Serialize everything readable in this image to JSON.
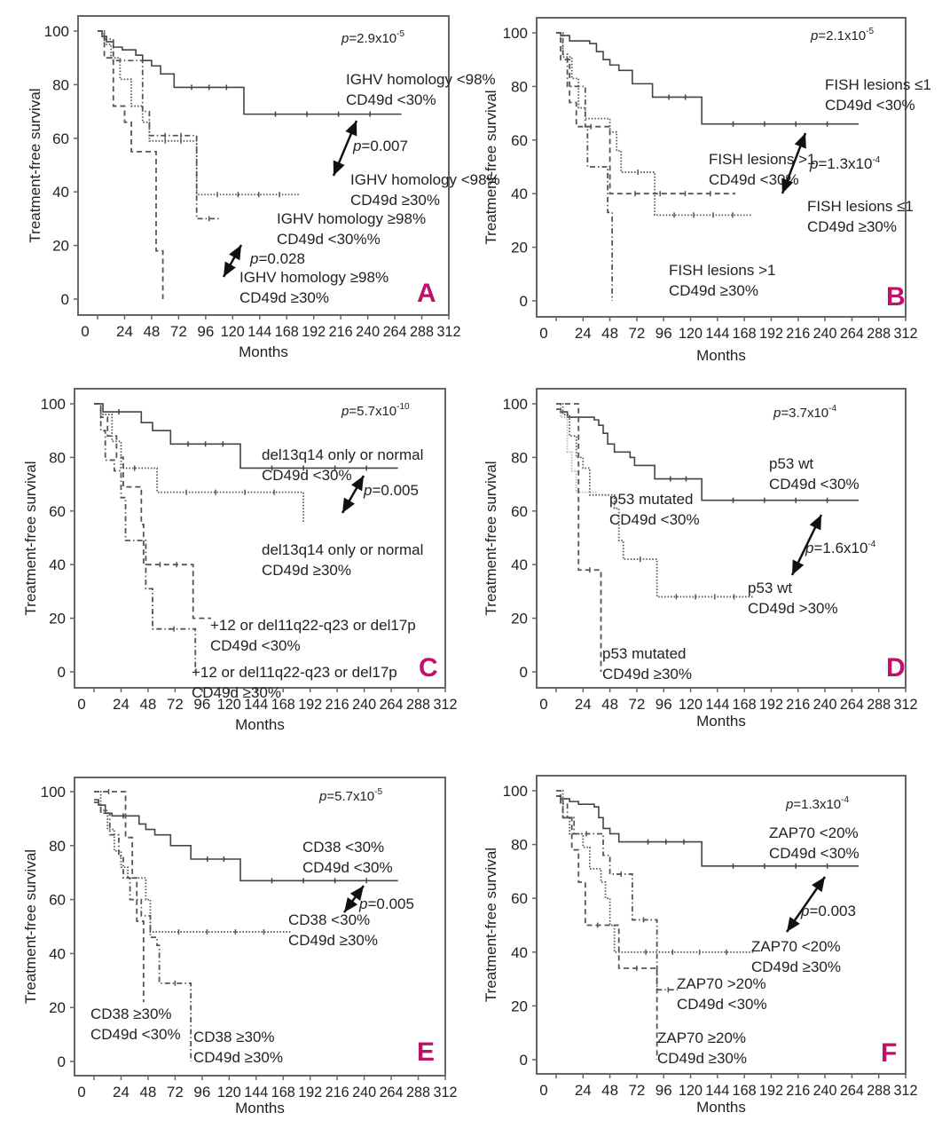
{
  "figure": {
    "accent_color": "#c0106a",
    "line_color": "#555555"
  },
  "chart_data": [
    {
      "id": "A",
      "type": "line",
      "subtype": "kaplan-meier",
      "panel_letter": "A",
      "xlabel": "Months",
      "ylabel": "Treatment-free survival",
      "xlim": [
        0,
        312
      ],
      "ylim": [
        0,
        100
      ],
      "xticks": [
        0,
        24,
        48,
        72,
        96,
        120,
        144,
        168,
        192,
        216,
        240,
        264,
        288,
        312
      ],
      "yticks": [
        0,
        20,
        40,
        60,
        80,
        100
      ],
      "overall_p": {
        "prefix": "p",
        "text": "=2.9x10",
        "exp": "-5"
      },
      "series": [
        {
          "name": "IGHV homology <98% CD49d <30%",
          "style": "solid",
          "x": [
            0,
            4,
            8,
            14,
            22,
            34,
            40,
            48,
            56,
            68,
            130,
            270
          ],
          "y": [
            100,
            98,
            96,
            94,
            93,
            91,
            89,
            87,
            84,
            79,
            69,
            69
          ]
        },
        {
          "name": "IGHV homology <98% CD49d ≥30%",
          "style": "dotted",
          "x": [
            0,
            6,
            12,
            20,
            30,
            40,
            46,
            88,
            180
          ],
          "y": [
            100,
            95,
            90,
            82,
            72,
            66,
            59,
            39,
            39
          ]
        },
        {
          "name": "IGHV homology ≥98% CD49d <30%",
          "style": "dashdot",
          "x": [
            0,
            6,
            14,
            32,
            40,
            46,
            88,
            110
          ],
          "y": [
            100,
            97,
            89,
            89,
            70,
            61,
            30,
            30
          ]
        },
        {
          "name": "IGHV homology ≥98% CD49d ≥30%",
          "style": "dashed",
          "x": [
            0,
            6,
            14,
            24,
            30,
            48,
            52,
            58,
            58
          ],
          "y": [
            100,
            90,
            72,
            66,
            55,
            55,
            18,
            18,
            0
          ]
        }
      ],
      "annotations": [
        {
          "lines": [
            "IGHV homology <98%",
            "CD49d <30%"
          ]
        },
        {
          "lines": [
            "IGHV homology <98%",
            "CD49d ≥30%"
          ]
        },
        {
          "lines": [
            "IGHV homology ≥98%",
            "CD49d <30%%"
          ]
        },
        {
          "lines": [
            "IGHV homology ≥98%",
            "CD49d ≥30%"
          ]
        }
      ],
      "pairwise_p": [
        {
          "prefix": "p",
          "text": "=0.007",
          "exp": ""
        },
        {
          "prefix": "p",
          "text": "=0.028",
          "exp": ""
        }
      ]
    },
    {
      "id": "B",
      "type": "line",
      "subtype": "kaplan-meier",
      "panel_letter": "B",
      "xlabel": "Months",
      "ylabel": "Treatment-free survival",
      "xlim": [
        0,
        312
      ],
      "ylim": [
        0,
        100
      ],
      "xticks": [
        0,
        24,
        48,
        72,
        96,
        120,
        144,
        168,
        192,
        216,
        240,
        264,
        288,
        312
      ],
      "yticks": [
        0,
        20,
        40,
        60,
        80,
        100
      ],
      "overall_p": {
        "prefix": "p",
        "text": "=2.1x10",
        "exp": "-5"
      },
      "series": [
        {
          "name": "FISH lesions ≤1 CD49d <30%",
          "style": "solid",
          "x": [
            0,
            4,
            12,
            30,
            36,
            42,
            48,
            56,
            68,
            86,
            130,
            270
          ],
          "y": [
            100,
            99,
            97,
            96,
            93,
            90,
            88,
            86,
            81,
            76,
            66,
            66
          ]
        },
        {
          "name": "FISH lesions >1 CD49d <30%",
          "style": "dotted",
          "x": [
            0,
            6,
            14,
            20,
            26,
            32,
            48,
            54,
            58,
            88,
            175
          ],
          "y": [
            100,
            91,
            83,
            72,
            68,
            68,
            63,
            56,
            48,
            32,
            32
          ]
        },
        {
          "name": "FISH lesions ≤1 CD49d ≥30%",
          "style": "dashed",
          "x": [
            0,
            4,
            12,
            18,
            44,
            48,
            160
          ],
          "y": [
            100,
            90,
            74,
            65,
            65,
            40,
            40
          ]
        },
        {
          "name": "FISH lesions >1 CD49d ≥30%",
          "style": "dashdot",
          "x": [
            0,
            6,
            10,
            18,
            26,
            28,
            42,
            46,
            50,
            50
          ],
          "y": [
            100,
            92,
            80,
            80,
            65,
            50,
            50,
            33,
            33,
            0
          ]
        }
      ],
      "annotations": [
        {
          "lines": [
            "FISH lesions ≤1",
            "CD49d <30%"
          ]
        },
        {
          "lines": [
            "FISH lesions >1",
            "CD49d <30%"
          ]
        },
        {
          "lines": [
            "FISH lesions ≤1",
            "CD49d ≥30%"
          ]
        },
        {
          "lines": [
            "FISH lesions >1",
            "CD49d ≥30%"
          ]
        }
      ],
      "pairwise_p": [
        {
          "prefix": "p",
          "text": "=1.3x10",
          "exp": "-4"
        }
      ]
    },
    {
      "id": "C",
      "type": "line",
      "subtype": "kaplan-meier",
      "panel_letter": "C",
      "xlabel": "Months",
      "ylabel": "Treatment-free survival",
      "xlim": [
        0,
        312
      ],
      "ylim": [
        0,
        100
      ],
      "xticks": [
        0,
        24,
        48,
        72,
        96,
        120,
        144,
        168,
        192,
        216,
        240,
        264,
        288,
        312
      ],
      "yticks": [
        0,
        20,
        40,
        60,
        80,
        100
      ],
      "overall_p": {
        "prefix": "p",
        "text": "=5.7x10",
        "exp": "-10"
      },
      "series": [
        {
          "name": "del13q14 only or normal CD49d <30%",
          "style": "solid",
          "x": [
            0,
            8,
            36,
            42,
            52,
            68,
            130,
            270
          ],
          "y": [
            100,
            97,
            97,
            93,
            90,
            85,
            76,
            76
          ]
        },
        {
          "name": "del13q14 only or normal CD49d ≥30%",
          "style": "dotted",
          "x": [
            0,
            8,
            16,
            24,
            48,
            56,
            186
          ],
          "y": [
            100,
            96,
            86,
            76,
            76,
            67,
            56
          ]
        },
        {
          "name": "+12 or del11q22-q23 or del17p CD49d <30%",
          "style": "dashed",
          "x": [
            0,
            6,
            12,
            20,
            26,
            38,
            42,
            44,
            88,
            104
          ],
          "y": [
            100,
            95,
            88,
            80,
            69,
            69,
            55,
            40,
            20,
            20
          ]
        },
        {
          "name": "+12 or del11q22-q23 or del17p CD49d ≥30%",
          "style": "dashdot",
          "x": [
            0,
            6,
            10,
            18,
            24,
            28,
            40,
            46,
            52,
            90,
            90
          ],
          "y": [
            100,
            90,
            79,
            75,
            65,
            49,
            49,
            31,
            16,
            16,
            0
          ]
        }
      ],
      "annotations": [
        {
          "lines": [
            "del13q14 only or normal",
            "CD49d <30%"
          ]
        },
        {
          "lines": [
            "del13q14 only or normal",
            "CD49d ≥30%"
          ]
        },
        {
          "lines": [
            "+12 or del11q22-q23 or del17p",
            "CD49d <30%"
          ]
        },
        {
          "lines": [
            "+12 or del11q22-q23 or del17p",
            "CD49d ≥30%"
          ]
        }
      ],
      "pairwise_p": [
        {
          "prefix": "p",
          "text": "=0.005",
          "exp": ""
        }
      ]
    },
    {
      "id": "D",
      "type": "line",
      "subtype": "kaplan-meier",
      "panel_letter": "D",
      "xlabel": "Months",
      "ylabel": "Treatment-free survival",
      "xlim": [
        0,
        312
      ],
      "ylim": [
        0,
        100
      ],
      "xticks": [
        0,
        24,
        48,
        72,
        96,
        120,
        144,
        168,
        192,
        216,
        240,
        264,
        288,
        312
      ],
      "yticks": [
        0,
        20,
        40,
        60,
        80,
        100
      ],
      "overall_p": {
        "prefix": "p",
        "text": "=3.7x10",
        "exp": "-4"
      },
      "series": [
        {
          "name": "p53 wt CD49d <30%",
          "style": "solid",
          "x": [
            0,
            4,
            10,
            18,
            34,
            38,
            42,
            46,
            52,
            66,
            70,
            88,
            130,
            270
          ],
          "y": [
            98,
            97,
            95,
            95,
            94,
            92,
            89,
            85,
            82,
            80,
            77,
            72,
            64,
            64
          ]
        },
        {
          "name": "p53 mutated CD49d <30%",
          "style": "dotted",
          "x": [
            0,
            6,
            12,
            18,
            24,
            30,
            48,
            52,
            56,
            60,
            90,
            176
          ],
          "y": [
            100,
            96,
            88,
            80,
            76,
            66,
            66,
            61,
            49,
            42,
            28,
            28
          ]
        },
        {
          "name": "p53 wt CD49d >30%",
          "style": "dotted-light",
          "x": [
            0,
            4,
            10,
            14,
            18,
            24,
            36
          ],
          "y": [
            100,
            95,
            82,
            75,
            67,
            67,
            67
          ]
        },
        {
          "name": "p53 mutated CD49d ≥30%",
          "style": "dashed",
          "x": [
            0,
            18,
            20,
            40,
            40
          ],
          "y": [
            100,
            100,
            38,
            38,
            0
          ]
        }
      ],
      "annotations": [
        {
          "lines": [
            "p53 wt",
            "CD49d <30%"
          ]
        },
        {
          "lines": [
            "p53 mutated",
            "CD49d <30%"
          ]
        },
        {
          "lines": [
            "p53 wt",
            "CD49d >30%"
          ]
        },
        {
          "lines": [
            "p53 mutated",
            "CD49d ≥30%"
          ]
        }
      ],
      "pairwise_p": [
        {
          "prefix": "p",
          "text": "=1.6x10",
          "exp": "-4"
        }
      ]
    },
    {
      "id": "E",
      "type": "line",
      "subtype": "kaplan-meier",
      "panel_letter": "E",
      "xlabel": "Months",
      "ylabel": "Treatment-free survival",
      "xlim": [
        0,
        312
      ],
      "ylim": [
        0,
        100
      ],
      "xticks": [
        0,
        24,
        48,
        72,
        96,
        120,
        144,
        168,
        192,
        216,
        240,
        264,
        288,
        312
      ],
      "yticks": [
        0,
        20,
        40,
        60,
        80,
        100
      ],
      "overall_p": {
        "prefix": "p",
        "text": "=5.7x10",
        "exp": "-5"
      },
      "series": [
        {
          "name": "CD38 <30% CD49d <30%",
          "style": "solid",
          "x": [
            0,
            4,
            10,
            16,
            36,
            40,
            46,
            54,
            68,
            86,
            130,
            270
          ],
          "y": [
            97,
            95,
            92,
            91,
            91,
            88,
            86,
            84,
            80,
            75,
            67,
            67
          ]
        },
        {
          "name": "CD38 <30% CD49d ≥30%",
          "style": "dotted",
          "x": [
            0,
            6,
            12,
            18,
            24,
            30,
            46,
            50,
            176
          ],
          "y": [
            100,
            93,
            86,
            78,
            72,
            68,
            60,
            48,
            48
          ]
        },
        {
          "name": "CD38 ≥30% CD49d <30%",
          "style": "dashed",
          "x": [
            0,
            26,
            28,
            34,
            38,
            44,
            44
          ],
          "y": [
            100,
            100,
            83,
            68,
            52,
            44,
            22
          ]
        },
        {
          "name": "CD38 ≥30% CD49d ≥30%",
          "style": "dashdot",
          "x": [
            0,
            6,
            14,
            22,
            26,
            32,
            42,
            50,
            56,
            58,
            86,
            86
          ],
          "y": [
            96,
            92,
            84,
            76,
            68,
            60,
            54,
            46,
            43,
            29,
            29,
            0
          ]
        }
      ],
      "annotations": [
        {
          "lines": [
            "CD38 <30%",
            "CD49d <30%"
          ]
        },
        {
          "lines": [
            "CD38 <30%",
            "CD49d ≥30%"
          ]
        },
        {
          "lines": [
            "CD38 ≥30%",
            "CD49d <30%"
          ]
        },
        {
          "lines": [
            "CD38 ≥30%",
            "CD49d ≥30%"
          ]
        }
      ],
      "pairwise_p": [
        {
          "prefix": "p",
          "text": "=0.005",
          "exp": ""
        }
      ]
    },
    {
      "id": "F",
      "type": "line",
      "subtype": "kaplan-meier",
      "panel_letter": "F",
      "xlabel": "Months",
      "ylabel": "Treatment-free survival",
      "xlim": [
        0,
        312
      ],
      "ylim": [
        0,
        100
      ],
      "xticks": [
        0,
        24,
        48,
        72,
        96,
        120,
        144,
        168,
        192,
        216,
        240,
        264,
        288,
        312
      ],
      "yticks": [
        0,
        20,
        40,
        60,
        80,
        100
      ],
      "overall_p": {
        "prefix": "p",
        "text": "=1.3x10",
        "exp": "-4"
      },
      "series": [
        {
          "name": "ZAP70 <20% CD49d <30%",
          "style": "solid",
          "x": [
            0,
            4,
            12,
            20,
            34,
            38,
            42,
            48,
            56,
            66,
            130,
            270
          ],
          "y": [
            98,
            97,
            96,
            95,
            94,
            90,
            86,
            84,
            81,
            81,
            72,
            72
          ]
        },
        {
          "name": "ZAP70 <20% CD49d ≥30%",
          "style": "dotted",
          "x": [
            0,
            6,
            12,
            24,
            30,
            40,
            44,
            48,
            52,
            56,
            176
          ],
          "y": [
            100,
            90,
            84,
            79,
            71,
            66,
            60,
            50,
            40,
            40,
            40
          ]
        },
        {
          "name": "ZAP70 >20% CD49d <30%",
          "style": "dashdot",
          "x": [
            0,
            4,
            10,
            16,
            38,
            42,
            48,
            68,
            88,
            90,
            110
          ],
          "y": [
            100,
            95,
            90,
            84,
            84,
            76,
            69,
            52,
            52,
            26,
            26
          ]
        },
        {
          "name": "ZAP70 ≥20% CD49d ≥30%",
          "style": "dashed",
          "x": [
            0,
            6,
            14,
            20,
            26,
            48,
            56,
            88,
            90,
            90
          ],
          "y": [
            98,
            90,
            78,
            66,
            50,
            50,
            34,
            34,
            26,
            0
          ]
        }
      ],
      "annotations": [
        {
          "lines": [
            "ZAP70 <20%",
            "CD49d <30%"
          ]
        },
        {
          "lines": [
            "ZAP70 <20%",
            "CD49d ≥30%"
          ]
        },
        {
          "lines": [
            "ZAP70 >20%",
            "CD49d <30%"
          ]
        },
        {
          "lines": [
            "ZAP70 ≥20%",
            "CD49d ≥30%"
          ]
        }
      ],
      "pairwise_p": [
        {
          "prefix": "p",
          "text": "=0.003",
          "exp": ""
        }
      ]
    }
  ]
}
